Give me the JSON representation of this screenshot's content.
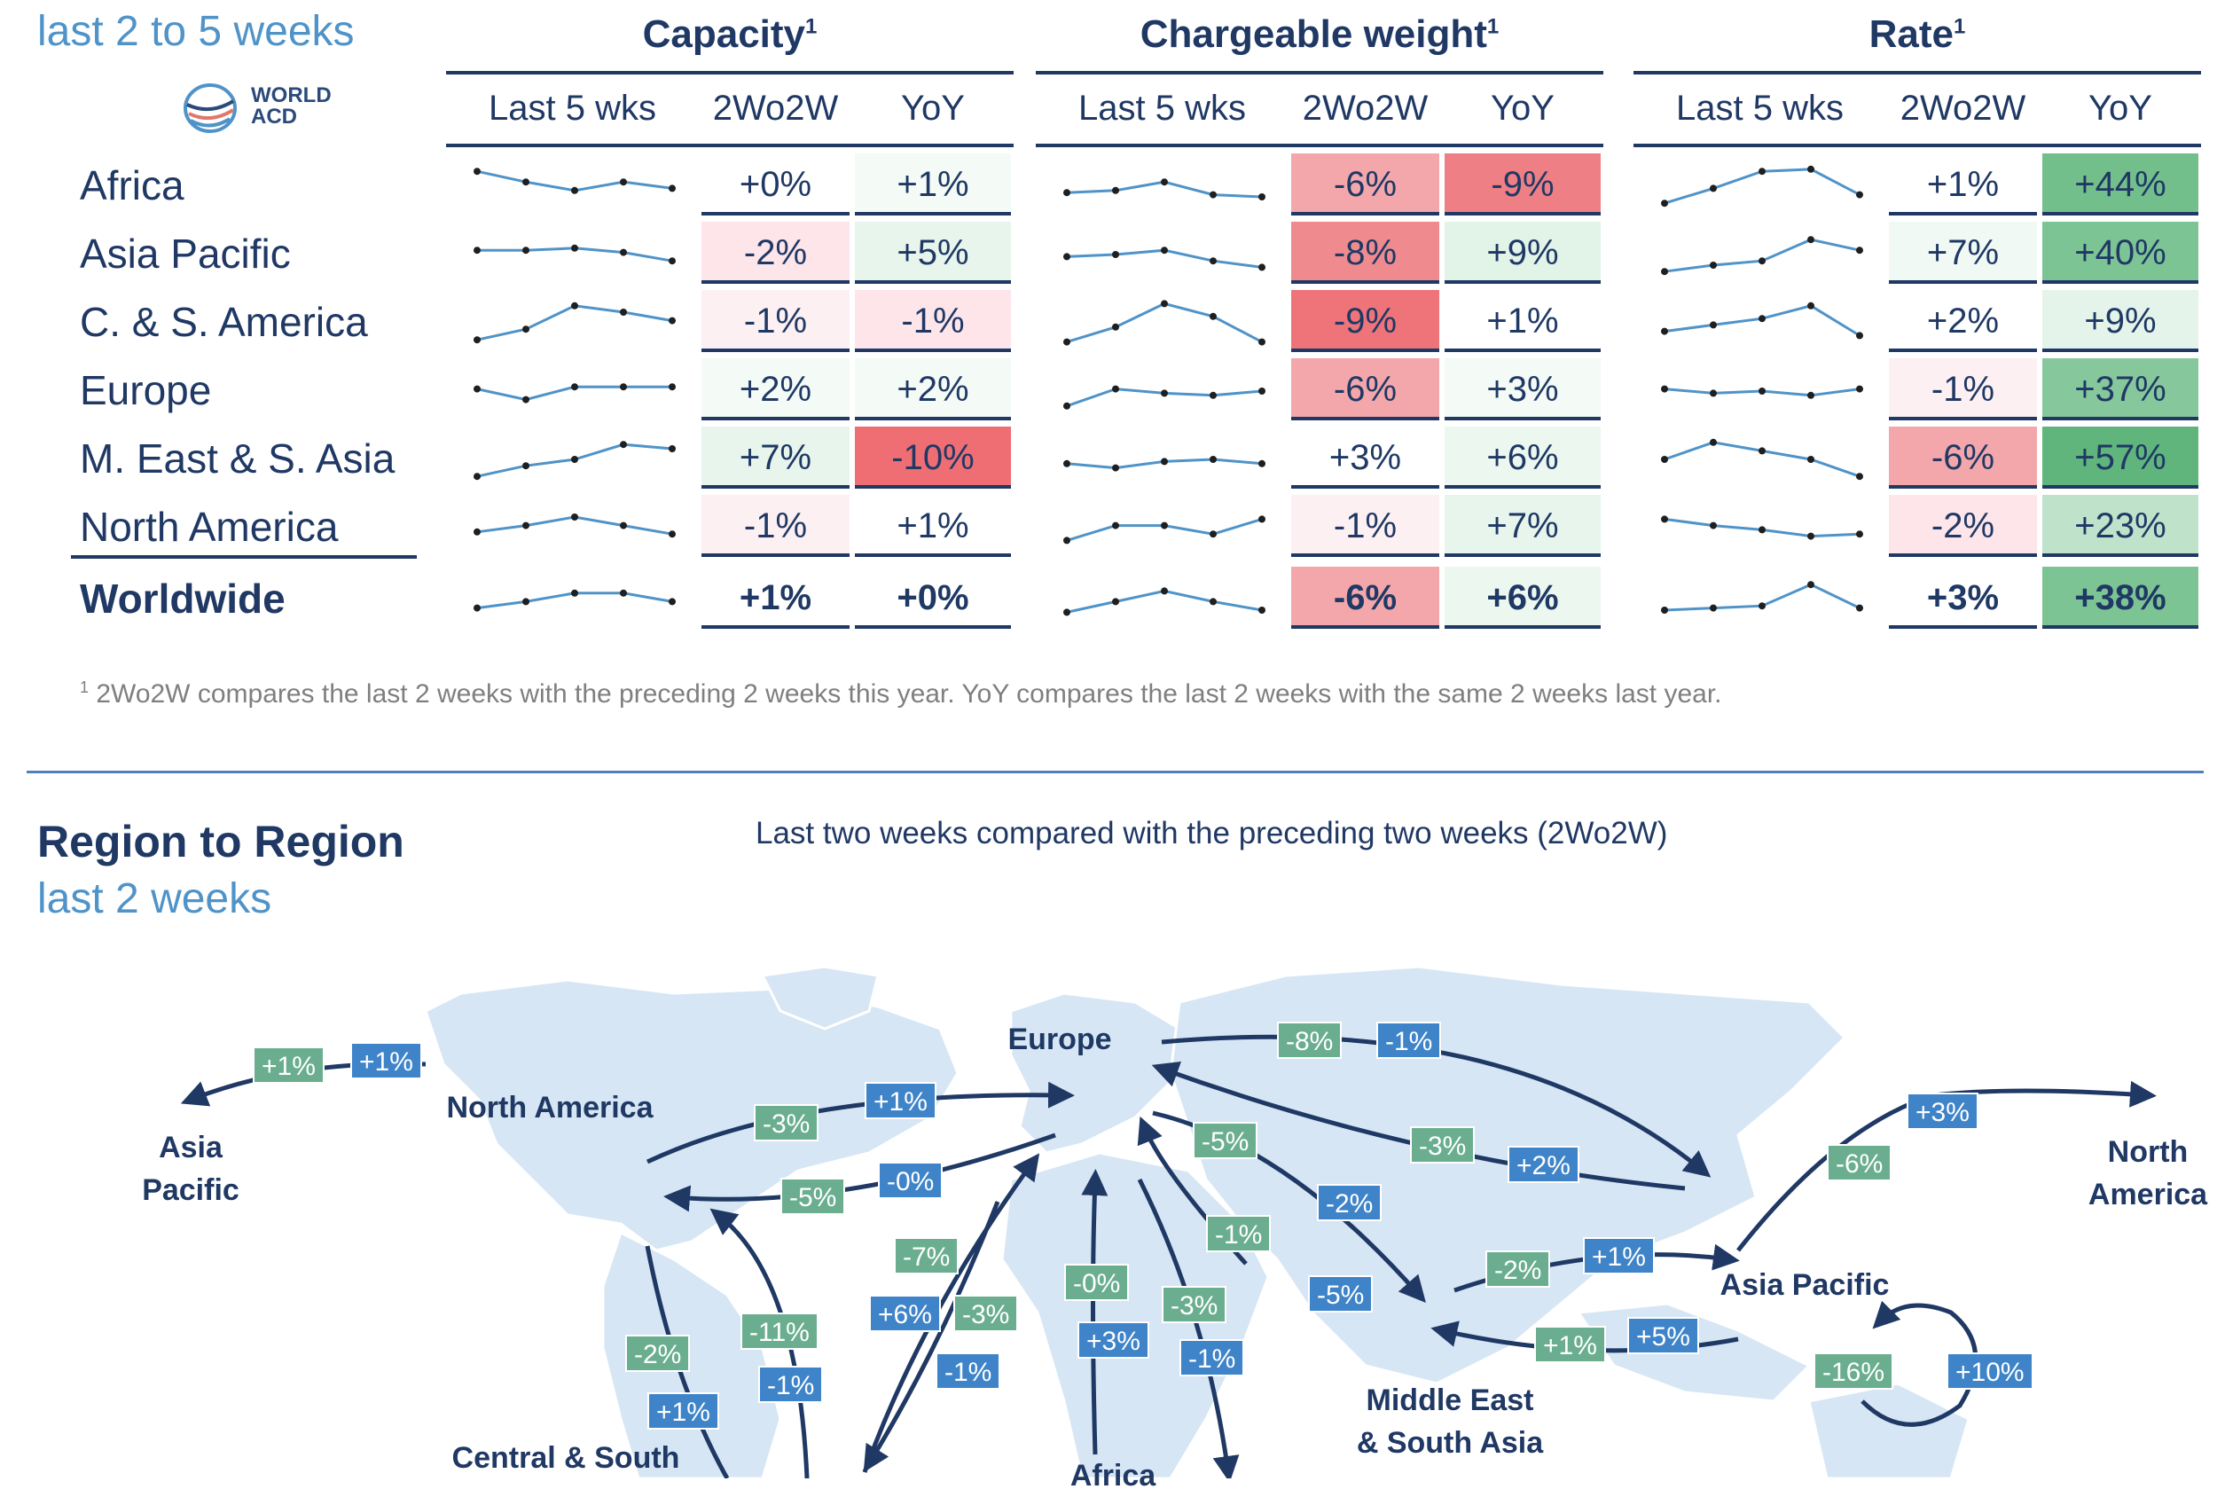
{
  "header": {
    "subtitle": "last 2 to 5 weeks",
    "logo_text": [
      "WORLD",
      "ACD"
    ]
  },
  "colors": {
    "navy": "#1f3864",
    "accent_blue": "#4f93c8",
    "neg_strong": "#ee6e73",
    "neg_light": "#fde5ea",
    "pos_strong": "#6dbb8a",
    "pos_light": "#e8f5ec"
  },
  "table": {
    "groups": [
      {
        "title": "Capacity",
        "sup": "1",
        "columns": [
          "Last 5 wks",
          "2Wo2W",
          "YoY"
        ]
      },
      {
        "title": "Chargeable weight",
        "sup": "1",
        "columns": [
          "Last 5 wks",
          "2Wo2W",
          "YoY"
        ]
      },
      {
        "title": "Rate",
        "sup": "1",
        "columns": [
          "Last 5 wks",
          "2Wo2W",
          "YoY"
        ]
      }
    ],
    "rows": [
      {
        "region": "Africa",
        "capacity": [
          "+0%",
          "+1%"
        ],
        "weight": [
          "-6%",
          "-9%"
        ],
        "rate": [
          "+1%",
          "+44%"
        ],
        "spark": {
          "capacity": [
            0.85,
            0.6,
            0.4,
            0.6,
            0.45
          ],
          "weight": [
            0.35,
            0.4,
            0.6,
            0.3,
            0.25
          ],
          "rate": [
            0.1,
            0.45,
            0.85,
            0.9,
            0.3
          ]
        }
      },
      {
        "region": "Asia Pacific",
        "capacity": [
          "-2%",
          "+5%"
        ],
        "weight": [
          "-8%",
          "+9%"
        ],
        "rate": [
          "+7%",
          "+40%"
        ],
        "spark": {
          "capacity": [
            0.6,
            0.6,
            0.65,
            0.55,
            0.35
          ],
          "weight": [
            0.45,
            0.5,
            0.6,
            0.35,
            0.2
          ],
          "rate": [
            0.1,
            0.25,
            0.35,
            0.85,
            0.6
          ]
        }
      },
      {
        "region": "C. & S. America",
        "capacity": [
          "-1%",
          "-1%"
        ],
        "weight": [
          "-9%",
          "+1%"
        ],
        "rate": [
          "+2%",
          "+9%"
        ],
        "spark": {
          "capacity": [
            0.1,
            0.35,
            0.9,
            0.75,
            0.55
          ],
          "weight": [
            0.05,
            0.4,
            0.95,
            0.65,
            0.05
          ],
          "rate": [
            0.3,
            0.45,
            0.6,
            0.9,
            0.2
          ]
        }
      },
      {
        "region": "Europe",
        "capacity": [
          "+2%",
          "+2%"
        ],
        "weight": [
          "-6%",
          "+3%"
        ],
        "rate": [
          "-1%",
          "+37%"
        ],
        "spark": {
          "capacity": [
            0.55,
            0.3,
            0.6,
            0.6,
            0.6
          ],
          "weight": [
            0.15,
            0.55,
            0.45,
            0.4,
            0.5
          ],
          "rate": [
            0.55,
            0.45,
            0.5,
            0.4,
            0.55
          ]
        }
      },
      {
        "region": "M. East & S. Asia",
        "capacity": [
          "+7%",
          "-10%"
        ],
        "weight": [
          "+3%",
          "+6%"
        ],
        "rate": [
          "-6%",
          "+57%"
        ],
        "spark": {
          "capacity": [
            0.1,
            0.35,
            0.5,
            0.85,
            0.75
          ],
          "weight": [
            0.4,
            0.3,
            0.45,
            0.5,
            0.4
          ],
          "rate": [
            0.5,
            0.9,
            0.7,
            0.5,
            0.1
          ]
        }
      },
      {
        "region": "North America",
        "capacity": [
          "-1%",
          "+1%"
        ],
        "weight": [
          "-1%",
          "+7%"
        ],
        "rate": [
          "-2%",
          "+23%"
        ],
        "spark": {
          "capacity": [
            0.4,
            0.55,
            0.75,
            0.55,
            0.35
          ],
          "weight": [
            0.2,
            0.55,
            0.55,
            0.35,
            0.7
          ],
          "rate": [
            0.7,
            0.55,
            0.45,
            0.3,
            0.35
          ]
        }
      },
      {
        "region": "Worldwide",
        "total": true,
        "capacity": [
          "+1%",
          "+0%"
        ],
        "weight": [
          "-6%",
          "+6%"
        ],
        "rate": [
          "+3%",
          "+38%"
        ],
        "spark": {
          "capacity": [
            0.3,
            0.45,
            0.65,
            0.65,
            0.45
          ],
          "weight": [
            0.2,
            0.45,
            0.7,
            0.45,
            0.25
          ],
          "rate": [
            0.25,
            0.3,
            0.35,
            0.85,
            0.3
          ]
        }
      }
    ],
    "cell_bg": {
      "capacity": [
        [
          "#ffffff",
          "#f4fbf6"
        ],
        [
          "#fde5ea",
          "#e8f5ec"
        ],
        [
          "#fdf0f2",
          "#fde5ea"
        ],
        [
          "#f4fbf6",
          "#f4fbf6"
        ],
        [
          "#e8f5ec",
          "#ee6e73"
        ],
        [
          "#fdf0f2",
          "#ffffff"
        ],
        [
          "#ffffff",
          "#ffffff"
        ]
      ],
      "weight": [
        [
          "#f4a7ab",
          "#ee7f84"
        ],
        [
          "#ef8b8f",
          "#e2f3e8"
        ],
        [
          "#ee7479",
          "#ffffff"
        ],
        [
          "#f4a7ab",
          "#f4fbf6"
        ],
        [
          "#ffffff",
          "#ecf7f0"
        ],
        [
          "#fdf0f2",
          "#e8f5ec"
        ],
        [
          "#f4a7ab",
          "#ecf7f0"
        ]
      ],
      "rate": [
        [
          "#ffffff",
          "#73bf8c"
        ],
        [
          "#f0f9f3",
          "#7dc494"
        ],
        [
          "#ffffff",
          "#e4f4ea"
        ],
        [
          "#fdf0f2",
          "#86c89c"
        ],
        [
          "#f4a7ab",
          "#5fb57c"
        ],
        [
          "#fde5ea",
          "#bfe2cb"
        ],
        [
          "#ffffff",
          "#7dc494"
        ]
      ]
    }
  },
  "footnote": {
    "sup": "1",
    "text": "2Wo2W compares the last 2 weeks with the preceding 2 weeks this year. YoY compares the last 2 weeks with the same 2 weeks last year."
  },
  "map_section": {
    "title": "Region to Region",
    "subtitle": "last 2 weeks",
    "caption": "Last two weeks compared with the preceding two weeks (2Wo2W)",
    "labels": {
      "asia_pacific_left": [
        "Asia",
        "Pacific"
      ],
      "north_america": "North America",
      "europe": "Europe",
      "north_america_right": [
        "North",
        "America"
      ],
      "asia_pacific": "Asia Pacific",
      "middle_east": [
        "Middle East",
        "& South Asia"
      ],
      "central_south": "Central & South",
      "africa": "Africa"
    },
    "badges": [
      {
        "text": "+1%",
        "color": "green"
      },
      {
        "text": "+1%",
        "color": "blue"
      },
      {
        "text": "-3%",
        "color": "green"
      },
      {
        "text": "+1%",
        "color": "blue"
      },
      {
        "text": "-5%",
        "color": "green"
      },
      {
        "text": "-0%",
        "color": "blue"
      },
      {
        "text": "-8%",
        "color": "green"
      },
      {
        "text": "-1%",
        "color": "blue"
      },
      {
        "text": "-3%",
        "color": "green"
      },
      {
        "text": "+2%",
        "color": "blue"
      },
      {
        "text": "+3%",
        "color": "blue"
      },
      {
        "text": "-6%",
        "color": "green"
      },
      {
        "text": "-5%",
        "color": "green"
      },
      {
        "text": "-2%",
        "color": "blue"
      },
      {
        "text": "-1%",
        "color": "green"
      },
      {
        "text": "-5%",
        "color": "blue"
      },
      {
        "text": "-2%",
        "color": "green"
      },
      {
        "text": "+1%",
        "color": "blue"
      },
      {
        "text": "+1%",
        "color": "green"
      },
      {
        "text": "+5%",
        "color": "blue"
      },
      {
        "text": "-7%",
        "color": "green"
      },
      {
        "text": "+6%",
        "color": "blue"
      },
      {
        "text": "-3%",
        "color": "green"
      },
      {
        "text": "-1%",
        "color": "blue"
      },
      {
        "text": "-0%",
        "color": "green"
      },
      {
        "text": "+3%",
        "color": "blue"
      },
      {
        "text": "-3%",
        "color": "green"
      },
      {
        "text": "-1%",
        "color": "blue"
      },
      {
        "text": "-11%",
        "color": "green"
      },
      {
        "text": "-1%",
        "color": "blue"
      },
      {
        "text": "-2%",
        "color": "green"
      },
      {
        "text": "+1%",
        "color": "blue"
      },
      {
        "text": "-16%",
        "color": "green"
      },
      {
        "text": "+10%",
        "color": "blue"
      }
    ]
  }
}
